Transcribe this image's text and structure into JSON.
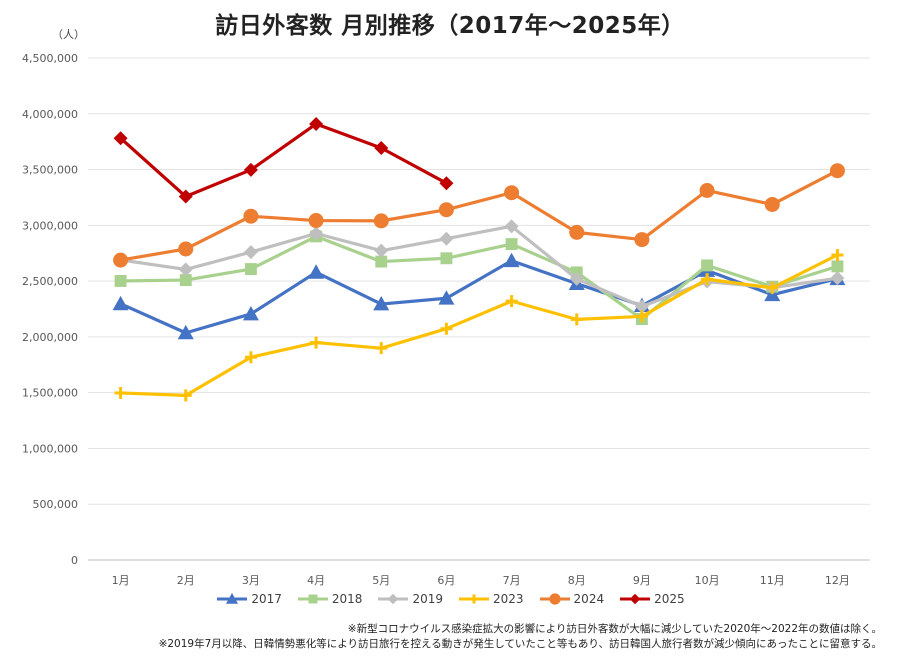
{
  "chart_data": {
    "type": "line",
    "title": "訪日外客数 月別推移（2017年～2025年）",
    "unit_label": "（人）",
    "categories": [
      "1月",
      "2月",
      "3月",
      "4月",
      "5月",
      "6月",
      "7月",
      "8月",
      "9月",
      "10月",
      "11月",
      "12月"
    ],
    "ylim": [
      0,
      4500000
    ],
    "yticks": [
      0,
      500000,
      1000000,
      1500000,
      2000000,
      2500000,
      3000000,
      3500000,
      4000000,
      4500000
    ],
    "ytick_labels": [
      "0",
      "500,000",
      "1,000,000",
      "1,500,000",
      "2,000,000",
      "2,500,000",
      "3,000,000",
      "3,500,000",
      "4,000,000",
      "4,500,000"
    ],
    "grid": true,
    "legend_position": "bottom",
    "series": [
      {
        "name": "2017",
        "color": "#4472C4",
        "marker": "triangle",
        "values": [
          2296451,
          2035813,
          2205731,
          2578970,
          2294493,
          2346439,
          2682897,
          2477487,
          2280042,
          2595132,
          2378065,
          2521396
        ]
      },
      {
        "name": "2018",
        "color": "#A9D18E",
        "marker": "square",
        "values": [
          2501409,
          2509297,
          2607956,
          2900718,
          2675052,
          2704631,
          2832040,
          2578021,
          2159595,
          2640636,
          2449776,
          2632000
        ]
      },
      {
        "name": "2019",
        "color": "#BFBFBF",
        "marker": "diamond",
        "values": [
          2689339,
          2604322,
          2760136,
          2926685,
          2773091,
          2880041,
          2991189,
          2520134,
          2272883,
          2496568,
          2441274,
          2526387
        ]
      },
      {
        "name": "2023",
        "color": "#FFC000",
        "marker": "cross",
        "values": [
          1497472,
          1475455,
          1817700,
          1949100,
          1898900,
          2073300,
          2320600,
          2156900,
          2183400,
          2516500,
          2440000,
          2734000
        ]
      },
      {
        "name": "2024",
        "color": "#ED7D31",
        "marker": "circle",
        "values": [
          2688100,
          2788000,
          3081600,
          3042900,
          3040000,
          3140000,
          3292500,
          2936800,
          2872200,
          3312200,
          3187000,
          3489800
        ]
      },
      {
        "name": "2025",
        "color": "#C00000",
        "marker": "diamond",
        "values": [
          3781000,
          3258100,
          3497600,
          3908900,
          3693300,
          3377800,
          null,
          null,
          null,
          null,
          null,
          null
        ]
      }
    ]
  },
  "notes": [
    "※新型コロナウイルス感染症拡大の影響により訪日外客数が大幅に減少していた2020年～2022年の数値は除く。",
    "※2019年7月以降、日韓情勢悪化等により訪日旅行を控える動きが発生していたこと等もあり、訪日韓国人旅行者数が減少傾向にあったことに留意する。"
  ]
}
